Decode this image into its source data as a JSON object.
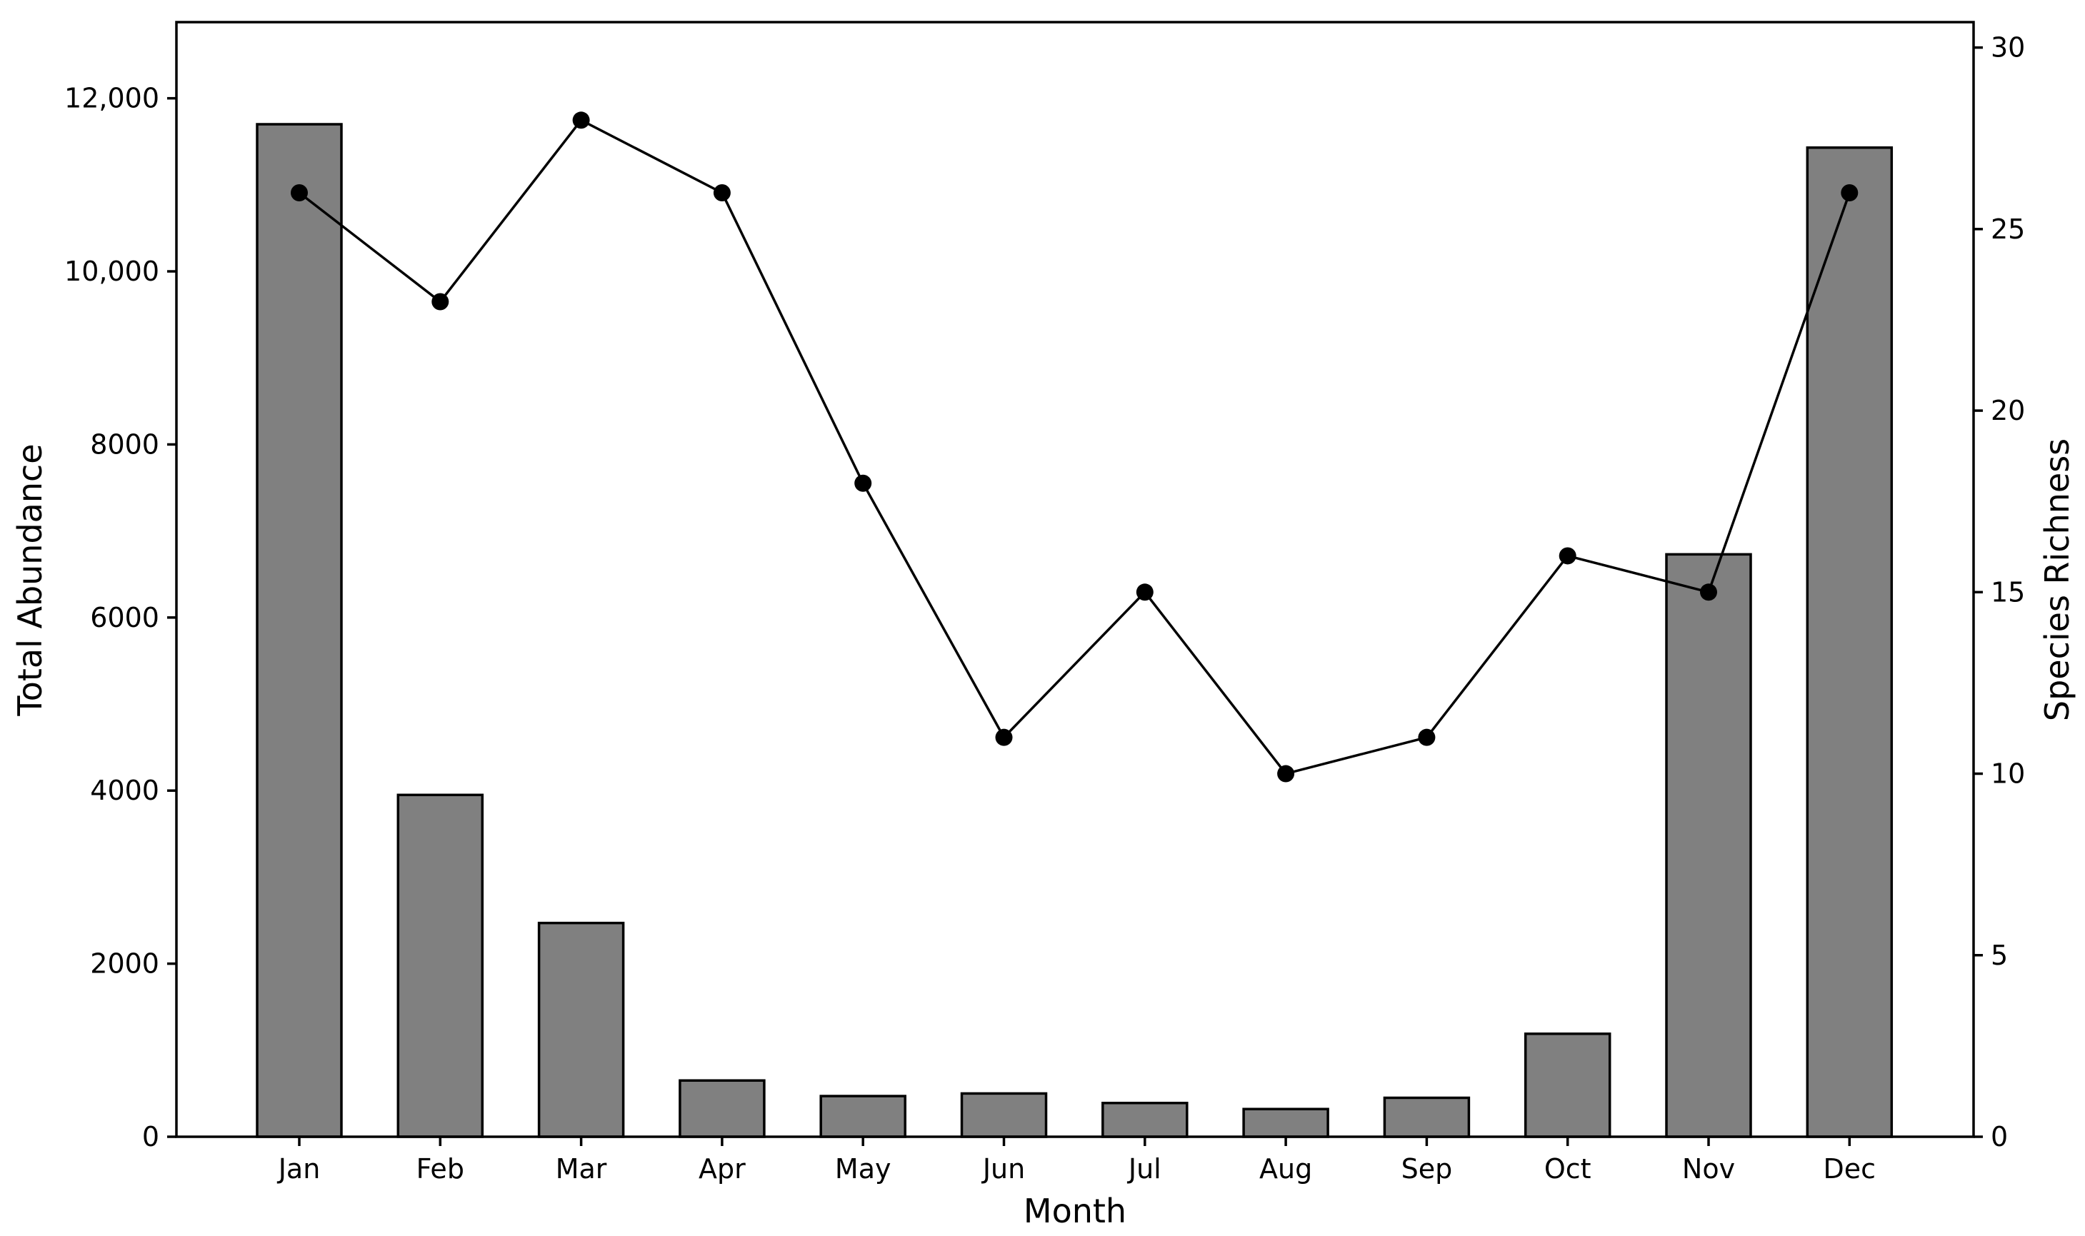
{
  "chart_data": {
    "type": "bar+line",
    "categories": [
      "Jan",
      "Feb",
      "Mar",
      "Apr",
      "May",
      "Jun",
      "Jul",
      "Aug",
      "Sep",
      "Oct",
      "Nov",
      "Dec"
    ],
    "series": [
      {
        "type": "bar",
        "axis": "left",
        "values": [
          11700,
          3950,
          2470,
          650,
          470,
          500,
          390,
          320,
          450,
          1190,
          6730,
          11430
        ],
        "color": "#808080"
      },
      {
        "type": "line",
        "axis": "right",
        "values": [
          26,
          23,
          28,
          26,
          18,
          11,
          15,
          10,
          11,
          16,
          15,
          26
        ],
        "color": "#000000"
      }
    ],
    "xlabel": "Month",
    "ylabel": "Total Abundance",
    "y2label": "Species Richness",
    "ylim": [
      0,
      12880
    ],
    "y2lim": [
      0,
      30.7
    ],
    "yticks": [
      {
        "value": 0,
        "label": "0"
      },
      {
        "value": 2000,
        "label": "2000"
      },
      {
        "value": 4000,
        "label": "4000"
      },
      {
        "value": 6000,
        "label": "6000"
      },
      {
        "value": 8000,
        "label": "8000"
      },
      {
        "value": 10000,
        "label": "10,000"
      },
      {
        "value": 12000,
        "label": "12,000"
      }
    ],
    "y2ticks": [
      {
        "value": 0,
        "label": "0"
      },
      {
        "value": 5,
        "label": "5"
      },
      {
        "value": 10,
        "label": "10"
      },
      {
        "value": 15,
        "label": "15"
      },
      {
        "value": 20,
        "label": "20"
      },
      {
        "value": 25,
        "label": "25"
      },
      {
        "value": 30,
        "label": "30"
      }
    ],
    "grid": false,
    "legend": "none"
  }
}
